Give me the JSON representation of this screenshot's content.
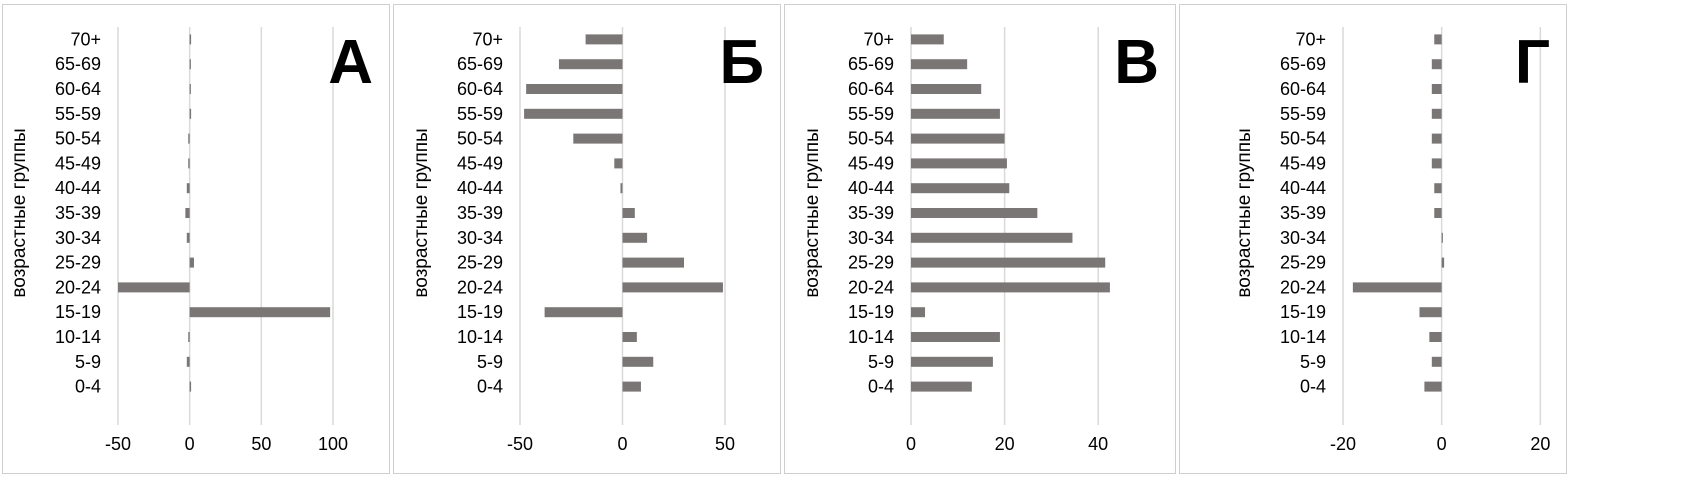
{
  "colors": {
    "bar": "#7a7676",
    "grid": "#d9d9d9",
    "text": "#000000",
    "border": "#cfcfcf"
  },
  "chart_data": [
    {
      "type": "bar",
      "orientation": "horizontal",
      "title": "А",
      "ylabel": "возрастные группы",
      "xlabel": "",
      "categories": [
        "0-4",
        "5-9",
        "10-14",
        "15-19",
        "20-24",
        "25-29",
        "30-34",
        "35-39",
        "40-44",
        "45-49",
        "50-54",
        "55-59",
        "60-64",
        "65-69",
        "70+"
      ],
      "values": [
        1,
        -2,
        -1,
        98,
        -50,
        3,
        -2,
        -3,
        -2,
        -1,
        -1,
        1,
        0,
        0,
        1
      ],
      "xlim": [
        -50,
        100
      ],
      "xticks": [
        -50,
        0,
        50,
        100
      ],
      "grid": true,
      "legend": "none"
    },
    {
      "type": "bar",
      "orientation": "horizontal",
      "title": "Б",
      "ylabel": "возрастные группы",
      "xlabel": "",
      "categories": [
        "0-4",
        "5-9",
        "10-14",
        "15-19",
        "20-24",
        "25-29",
        "30-34",
        "35-39",
        "40-44",
        "45-49",
        "50-54",
        "55-59",
        "60-64",
        "65-69",
        "70+"
      ],
      "values": [
        9,
        15,
        7,
        -38,
        49,
        30,
        12,
        6,
        -1,
        -4,
        -24,
        -48,
        -47,
        -31,
        -18
      ],
      "xlim": [
        -50,
        50
      ],
      "xticks": [
        -50,
        0,
        50
      ],
      "grid": true,
      "legend": "none"
    },
    {
      "type": "bar",
      "orientation": "horizontal",
      "title": "В",
      "ylabel": "возрастные группы",
      "xlabel": "",
      "categories": [
        "0-4",
        "5-9",
        "10-14",
        "15-19",
        "20-24",
        "25-29",
        "30-34",
        "35-39",
        "40-44",
        "45-49",
        "50-54",
        "55-59",
        "60-64",
        "65-69",
        "70+"
      ],
      "values": [
        13,
        17.5,
        19,
        3,
        42.5,
        41.5,
        34.5,
        27,
        21,
        20.5,
        20,
        19,
        15,
        12,
        7
      ],
      "xlim": [
        0,
        50
      ],
      "xticks": [
        0,
        20,
        40
      ],
      "grid": true,
      "legend": "none"
    },
    {
      "type": "bar",
      "orientation": "horizontal",
      "title": "Г",
      "ylabel": "возрастные группы",
      "xlabel": "",
      "categories": [
        "0-4",
        "5-9",
        "10-14",
        "15-19",
        "20-24",
        "25-29",
        "30-34",
        "35-39",
        "40-44",
        "45-49",
        "50-54",
        "55-59",
        "60-64",
        "65-69",
        "70+"
      ],
      "values": [
        -3.5,
        -2,
        -2.5,
        -4.5,
        -18,
        0.5,
        0,
        -1.5,
        -1.5,
        -2,
        -2,
        -2,
        -2,
        -2,
        -1.5
      ],
      "xlim": [
        -20,
        25
      ],
      "xticks": [
        -20,
        0,
        20
      ],
      "grid": true,
      "legend": "none"
    }
  ]
}
